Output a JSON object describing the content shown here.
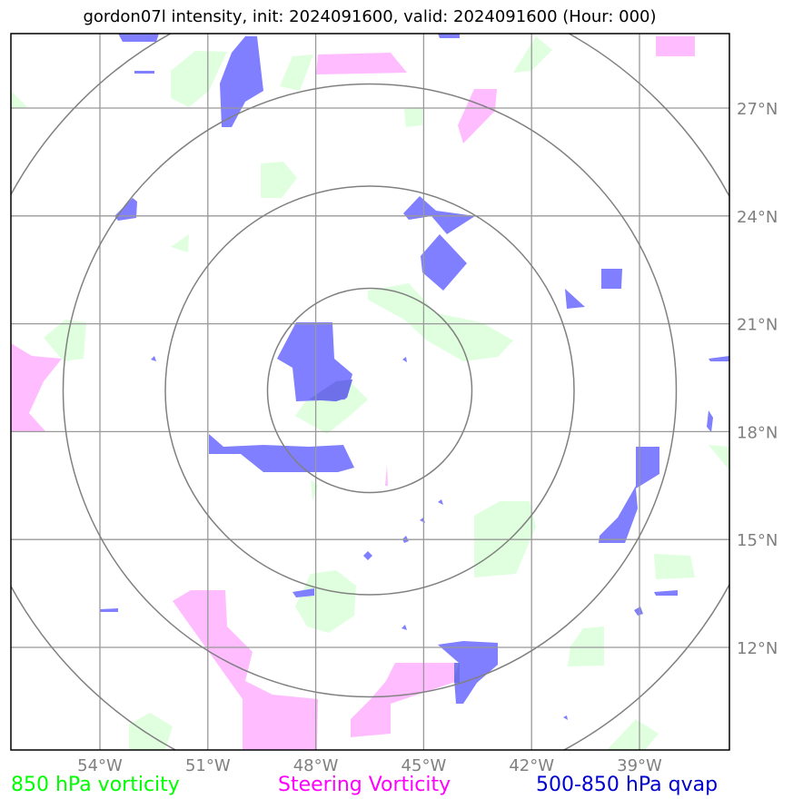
{
  "title": "gordon07l intensity, init: 2024091600, valid: 2024091600 (Hour: 000)",
  "map": {
    "lon_range": [
      -58.3,
      -38.0
    ],
    "lat_range": [
      9.3,
      29.5
    ],
    "lon_ticks": [
      "54°W",
      "51°W",
      "48°W",
      "45°W",
      "42°W",
      "39°W"
    ],
    "lat_ticks": [
      "27°N",
      "24°N",
      "21°N",
      "18°N",
      "15°N",
      "12°N"
    ],
    "range_rings": 4,
    "colors": {
      "grid": "#999999",
      "rings": "#808080",
      "tick_text": "#808080"
    }
  },
  "legend": {
    "low_vort": {
      "label": "850 hPa vorticity",
      "color": "#00ff00"
    },
    "steering": {
      "label": "Steering Vorticity",
      "color": "#ff00ff"
    },
    "qvap": {
      "label": "500-850 hPa qvap",
      "color": "#0000cc"
    }
  },
  "layer_colors": {
    "green": "#dfffdf",
    "magenta": "#ffbcff",
    "blue": "#7f7fff"
  }
}
